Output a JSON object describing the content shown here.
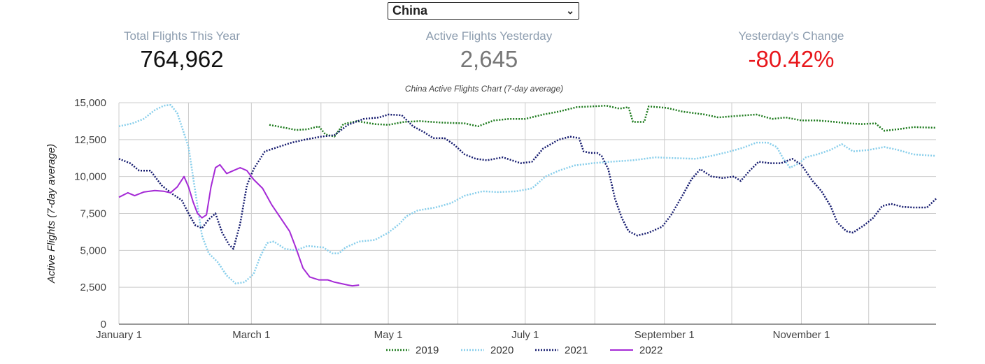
{
  "selector": {
    "selected": "China"
  },
  "stats": {
    "total": {
      "label": "Total Flights This Year",
      "value": "764,962"
    },
    "active": {
      "label": "Active Flights Yesterday",
      "value": "2,645"
    },
    "change": {
      "label": "Yesterday's Change",
      "value": "-80.42%"
    }
  },
  "colors": {
    "2019": "#1e7b1e",
    "2020": "#87ceeb",
    "2021": "#141a6e",
    "2022": "#a52ad6",
    "change_negative": "#e8161b"
  },
  "chart_data": {
    "type": "line",
    "title": "China Active Flights Chart (7-day average)",
    "ylabel": "Active Flights (7-day average)",
    "xlabel": "",
    "ylim": [
      0,
      15000
    ],
    "yticks": [
      0,
      2500,
      5000,
      7500,
      10000,
      12500,
      15000
    ],
    "ytick_labels": [
      "0",
      "2,500",
      "5,000",
      "7,500",
      "10,000",
      "12,500",
      "15,000"
    ],
    "x_unit": "day of year",
    "xlim": [
      1,
      365
    ],
    "xticks": [
      {
        "x": 1,
        "label": "January 1"
      },
      {
        "x": 60,
        "label": "March 1"
      },
      {
        "x": 121,
        "label": "May 1"
      },
      {
        "x": 182,
        "label": "July 1"
      },
      {
        "x": 244,
        "label": "September 1"
      },
      {
        "x": 305,
        "label": "November 1"
      }
    ],
    "grid": true,
    "legend_position": "bottom",
    "series": [
      {
        "name": "2019",
        "style": "dotted",
        "points": [
          [
            68,
            13500
          ],
          [
            75,
            13300
          ],
          [
            80,
            13150
          ],
          [
            85,
            13200
          ],
          [
            90,
            13400
          ],
          [
            93,
            12850
          ],
          [
            97,
            12700
          ],
          [
            101,
            13550
          ],
          [
            107,
            13750
          ],
          [
            115,
            13550
          ],
          [
            121,
            13500
          ],
          [
            128,
            13700
          ],
          [
            135,
            13750
          ],
          [
            145,
            13650
          ],
          [
            155,
            13600
          ],
          [
            161,
            13400
          ],
          [
            168,
            13800
          ],
          [
            175,
            13900
          ],
          [
            182,
            13900
          ],
          [
            190,
            14200
          ],
          [
            197,
            14400
          ],
          [
            205,
            14700
          ],
          [
            212,
            14750
          ],
          [
            218,
            14800
          ],
          [
            224,
            14600
          ],
          [
            228,
            14700
          ],
          [
            230,
            13700
          ],
          [
            235,
            13700
          ],
          [
            237,
            14750
          ],
          [
            245,
            14650
          ],
          [
            252,
            14400
          ],
          [
            262,
            14200
          ],
          [
            268,
            14000
          ],
          [
            276,
            14100
          ],
          [
            285,
            14200
          ],
          [
            292,
            13900
          ],
          [
            298,
            14000
          ],
          [
            305,
            13800
          ],
          [
            312,
            13800
          ],
          [
            320,
            13700
          ],
          [
            326,
            13600
          ],
          [
            332,
            13550
          ],
          [
            338,
            13600
          ],
          [
            342,
            13100
          ],
          [
            348,
            13200
          ],
          [
            355,
            13350
          ],
          [
            365,
            13300
          ]
        ]
      },
      {
        "name": "2020",
        "style": "dotted",
        "points": [
          [
            1,
            13400
          ],
          [
            7,
            13600
          ],
          [
            12,
            13900
          ],
          [
            17,
            14500
          ],
          [
            21,
            14800
          ],
          [
            24,
            14850
          ],
          [
            27,
            14300
          ],
          [
            32,
            12000
          ],
          [
            35,
            9000
          ],
          [
            38,
            6000
          ],
          [
            41,
            4800
          ],
          [
            45,
            4200
          ],
          [
            49,
            3300
          ],
          [
            53,
            2750
          ],
          [
            57,
            2850
          ],
          [
            61,
            3400
          ],
          [
            64,
            4600
          ],
          [
            67,
            5500
          ],
          [
            70,
            5600
          ],
          [
            75,
            5100
          ],
          [
            80,
            5000
          ],
          [
            85,
            5300
          ],
          [
            92,
            5200
          ],
          [
            96,
            4800
          ],
          [
            99,
            4800
          ],
          [
            102,
            5200
          ],
          [
            108,
            5600
          ],
          [
            115,
            5700
          ],
          [
            121,
            6200
          ],
          [
            126,
            6800
          ],
          [
            129,
            7300
          ],
          [
            134,
            7700
          ],
          [
            142,
            7900
          ],
          [
            149,
            8200
          ],
          [
            155,
            8700
          ],
          [
            163,
            9000
          ],
          [
            170,
            8950
          ],
          [
            178,
            9000
          ],
          [
            185,
            9200
          ],
          [
            191,
            10000
          ],
          [
            197,
            10400
          ],
          [
            204,
            10750
          ],
          [
            212,
            10900
          ],
          [
            220,
            11000
          ],
          [
            230,
            11100
          ],
          [
            235,
            11200
          ],
          [
            240,
            11300
          ],
          [
            248,
            11250
          ],
          [
            258,
            11200
          ],
          [
            265,
            11400
          ],
          [
            272,
            11650
          ],
          [
            279,
            11950
          ],
          [
            285,
            12300
          ],
          [
            290,
            12300
          ],
          [
            294,
            12000
          ],
          [
            297,
            11200
          ],
          [
            300,
            10600
          ],
          [
            304,
            10900
          ],
          [
            307,
            11300
          ],
          [
            312,
            11500
          ],
          [
            318,
            11800
          ],
          [
            323,
            12200
          ],
          [
            328,
            11700
          ],
          [
            335,
            11800
          ],
          [
            342,
            12000
          ],
          [
            348,
            11800
          ],
          [
            355,
            11500
          ],
          [
            365,
            11400
          ]
        ]
      },
      {
        "name": "2021",
        "style": "dotted",
        "points": [
          [
            1,
            11200
          ],
          [
            6,
            10900
          ],
          [
            10,
            10400
          ],
          [
            15,
            10400
          ],
          [
            20,
            9400
          ],
          [
            25,
            8800
          ],
          [
            29,
            8400
          ],
          [
            32,
            7500
          ],
          [
            35,
            6700
          ],
          [
            38,
            6500
          ],
          [
            41,
            7100
          ],
          [
            44,
            7500
          ],
          [
            47,
            6200
          ],
          [
            50,
            5400
          ],
          [
            52,
            5100
          ],
          [
            55,
            6800
          ],
          [
            58,
            9400
          ],
          [
            61,
            10500
          ],
          [
            66,
            11700
          ],
          [
            72,
            12000
          ],
          [
            78,
            12300
          ],
          [
            84,
            12500
          ],
          [
            91,
            12700
          ],
          [
            97,
            12800
          ],
          [
            103,
            13500
          ],
          [
            110,
            13900
          ],
          [
            117,
            14000
          ],
          [
            121,
            14200
          ],
          [
            127,
            14150
          ],
          [
            132,
            13400
          ],
          [
            137,
            13000
          ],
          [
            141,
            12600
          ],
          [
            146,
            12600
          ],
          [
            150,
            12200
          ],
          [
            155,
            11500
          ],
          [
            160,
            11200
          ],
          [
            165,
            11100
          ],
          [
            172,
            11300
          ],
          [
            180,
            10900
          ],
          [
            185,
            11000
          ],
          [
            190,
            11900
          ],
          [
            197,
            12500
          ],
          [
            202,
            12700
          ],
          [
            206,
            12600
          ],
          [
            208,
            11700
          ],
          [
            211,
            11600
          ],
          [
            214,
            11600
          ],
          [
            216,
            11400
          ],
          [
            219,
            10500
          ],
          [
            222,
            8500
          ],
          [
            225,
            7200
          ],
          [
            228,
            6300
          ],
          [
            232,
            6000
          ],
          [
            237,
            6200
          ],
          [
            243,
            6600
          ],
          [
            247,
            7400
          ],
          [
            252,
            8700
          ],
          [
            256,
            9800
          ],
          [
            260,
            10500
          ],
          [
            265,
            10000
          ],
          [
            270,
            9900
          ],
          [
            275,
            10000
          ],
          [
            278,
            9700
          ],
          [
            282,
            10400
          ],
          [
            286,
            11000
          ],
          [
            291,
            10900
          ],
          [
            296,
            10900
          ],
          [
            301,
            11200
          ],
          [
            305,
            10800
          ],
          [
            310,
            9700
          ],
          [
            314,
            9000
          ],
          [
            318,
            8000
          ],
          [
            321,
            6900
          ],
          [
            325,
            6300
          ],
          [
            328,
            6200
          ],
          [
            333,
            6700
          ],
          [
            337,
            7200
          ],
          [
            341,
            8000
          ],
          [
            345,
            8150
          ],
          [
            350,
            7950
          ],
          [
            355,
            7900
          ],
          [
            361,
            7900
          ],
          [
            365,
            8500
          ]
        ]
      },
      {
        "name": "2022",
        "style": "solid",
        "points": [
          [
            1,
            8600
          ],
          [
            5,
            8900
          ],
          [
            8,
            8700
          ],
          [
            12,
            8950
          ],
          [
            17,
            9050
          ],
          [
            21,
            9000
          ],
          [
            24,
            8900
          ],
          [
            27,
            9300
          ],
          [
            30,
            10000
          ],
          [
            32,
            9300
          ],
          [
            34,
            8300
          ],
          [
            36,
            7500
          ],
          [
            38,
            7200
          ],
          [
            40,
            7400
          ],
          [
            42,
            9300
          ],
          [
            44,
            10600
          ],
          [
            46,
            10800
          ],
          [
            49,
            10200
          ],
          [
            52,
            10400
          ],
          [
            55,
            10600
          ],
          [
            58,
            10400
          ],
          [
            61,
            9800
          ],
          [
            65,
            9200
          ],
          [
            69,
            8100
          ],
          [
            73,
            7200
          ],
          [
            77,
            6300
          ],
          [
            80,
            5100
          ],
          [
            83,
            3800
          ],
          [
            86,
            3200
          ],
          [
            90,
            3000
          ],
          [
            94,
            3000
          ],
          [
            97,
            2850
          ],
          [
            100,
            2750
          ],
          [
            103,
            2650
          ],
          [
            105,
            2600
          ],
          [
            108,
            2650
          ]
        ]
      }
    ]
  }
}
